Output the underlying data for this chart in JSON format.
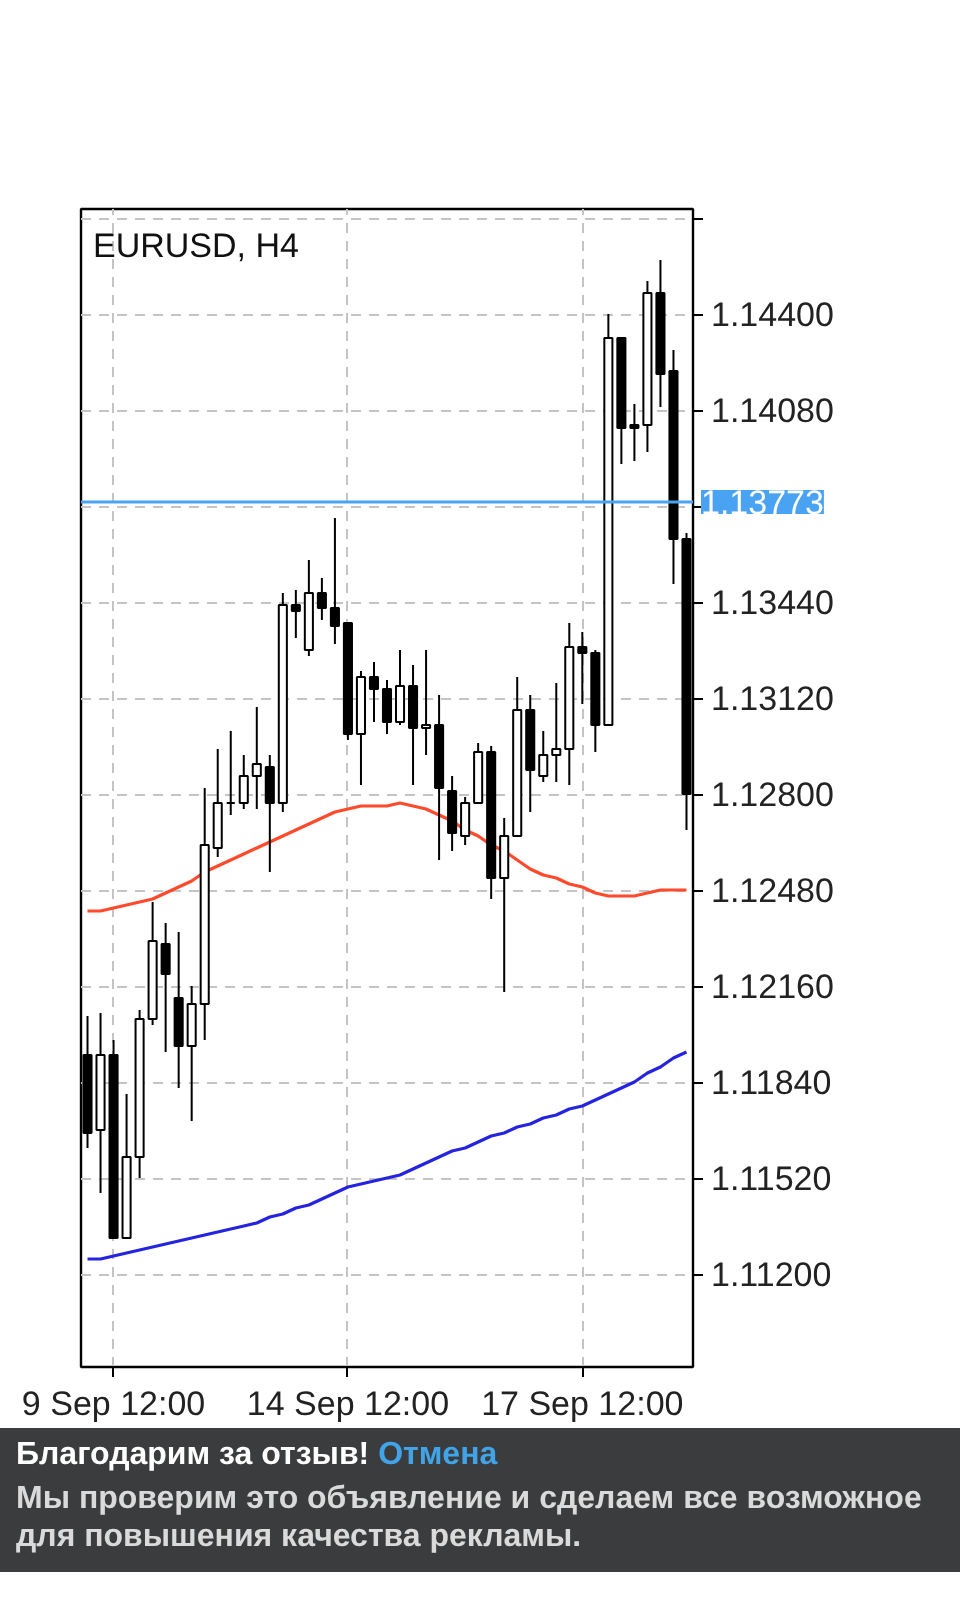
{
  "chart_data": {
    "type": "candlestick",
    "title": "EURUSD, H4",
    "categories": [
      null,
      null,
      "9 Sep 12:00",
      null,
      null,
      null,
      null,
      null,
      null,
      null,
      null,
      null,
      null,
      null,
      null,
      null,
      null,
      null,
      null,
      null,
      "14 Sep 12:00",
      null,
      null,
      null,
      null,
      null,
      null,
      null,
      null,
      null,
      null,
      null,
      null,
      null,
      null,
      null,
      null,
      null,
      "17 Sep 12:00",
      null,
      null,
      null,
      null,
      null,
      null,
      null,
      null
    ],
    "ohlc": [
      [
        1.1193,
        1.1206,
        1.1162,
        1.1167
      ],
      [
        1.1168,
        1.1207,
        1.1147,
        1.1193
      ],
      [
        1.1193,
        1.1198,
        1.1132,
        1.1132
      ],
      [
        1.1132,
        1.118,
        1.1132,
        1.1159
      ],
      [
        1.1159,
        1.1208,
        1.1152,
        1.1205
      ],
      [
        1.1205,
        1.1244,
        1.1203,
        1.1231
      ],
      [
        1.123,
        1.1237,
        1.1194,
        1.122
      ],
      [
        1.1212,
        1.1234,
        1.1182,
        1.1196
      ],
      [
        1.1196,
        1.1216,
        1.1171,
        1.121
      ],
      [
        1.121,
        1.1282,
        1.1198,
        1.1263
      ],
      [
        1.1262,
        1.1295,
        1.1259,
        1.1277
      ],
      [
        1.1277,
        1.1301,
        1.1273,
        1.1277
      ],
      [
        1.1277,
        1.1293,
        1.1275,
        1.1286
      ],
      [
        1.1286,
        1.1309,
        1.1275,
        1.129
      ],
      [
        1.1289,
        1.1293,
        1.1254,
        1.1277
      ],
      [
        1.1277,
        1.1347,
        1.1274,
        1.1343
      ],
      [
        1.1343,
        1.1348,
        1.1332,
        1.1341
      ],
      [
        1.1328,
        1.1358,
        1.1326,
        1.1347
      ],
      [
        1.1347,
        1.1352,
        1.1338,
        1.1342
      ],
      [
        1.1342,
        1.1372,
        1.133,
        1.1336
      ],
      [
        1.1337,
        1.1337,
        1.1298,
        1.13
      ],
      [
        1.13,
        1.1321,
        1.1283,
        1.1319
      ],
      [
        1.1319,
        1.1324,
        1.1304,
        1.1315
      ],
      [
        1.1315,
        1.1318,
        1.13,
        1.1304
      ],
      [
        1.1304,
        1.1328,
        1.1303,
        1.1316
      ],
      [
        1.1316,
        1.1323,
        1.1283,
        1.1302
      ],
      [
        1.1302,
        1.1328,
        1.1293,
        1.1303
      ],
      [
        1.1303,
        1.1313,
        1.1258,
        1.1282
      ],
      [
        1.1281,
        1.1286,
        1.1261,
        1.1267
      ],
      [
        1.1266,
        1.1279,
        1.1263,
        1.1277
      ],
      [
        1.1277,
        1.1297,
        1.1277,
        1.1294
      ],
      [
        1.1294,
        1.1296,
        1.1245,
        1.1252
      ],
      [
        1.1252,
        1.1272,
        1.1214,
        1.1266
      ],
      [
        1.1266,
        1.1319,
        1.1266,
        1.1308
      ],
      [
        1.1308,
        1.1313,
        1.1274,
        1.1288
      ],
      [
        1.1286,
        1.1301,
        1.1284,
        1.1293
      ],
      [
        1.1293,
        1.1317,
        1.1284,
        1.1295
      ],
      [
        1.1295,
        1.1337,
        1.1283,
        1.1329
      ],
      [
        1.1329,
        1.1334,
        1.131,
        1.1327
      ],
      [
        1.1327,
        1.1328,
        1.1294,
        1.1303
      ],
      [
        1.1303,
        1.144,
        1.1303,
        1.1432
      ],
      [
        1.1432,
        1.1432,
        1.139,
        1.1402
      ],
      [
        1.1403,
        1.141,
        1.1391,
        1.1402
      ],
      [
        1.1403,
        1.1451,
        1.1394,
        1.1447
      ],
      [
        1.1447,
        1.1458,
        1.1409,
        1.142
      ],
      [
        1.1421,
        1.1428,
        1.135,
        1.1365
      ],
      [
        1.1365,
        1.1367,
        1.1268,
        1.128
      ]
    ],
    "series": [
      {
        "type": "line",
        "color": "#ff4a2c",
        "values": [
          1.1241,
          1.1241,
          1.1242,
          1.1243,
          1.1244,
          1.1245,
          1.1247,
          1.1249,
          1.1251,
          1.1254,
          1.1256,
          1.1258,
          1.126,
          1.1262,
          1.1264,
          1.1266,
          1.1268,
          1.127,
          1.1272,
          1.1274,
          1.1275,
          1.1276,
          1.1276,
          1.1276,
          1.1277,
          1.1276,
          1.1275,
          1.1273,
          1.1271,
          1.1268,
          1.1266,
          1.1263,
          1.1261,
          1.1258,
          1.1255,
          1.1253,
          1.1252,
          1.125,
          1.1249,
          1.1247,
          1.1246,
          1.1246,
          1.1246,
          1.1247,
          1.1248,
          1.1248,
          1.1248
        ]
      },
      {
        "type": "line",
        "color": "#2424e0",
        "values": [
          1.1125,
          1.1125,
          1.1126,
          1.1127,
          1.1128,
          1.1129,
          1.113,
          1.1131,
          1.1132,
          1.1133,
          1.1134,
          1.1135,
          1.1136,
          1.1137,
          1.1139,
          1.114,
          1.1142,
          1.1143,
          1.1145,
          1.1147,
          1.1149,
          1.115,
          1.1151,
          1.1152,
          1.1153,
          1.1155,
          1.1157,
          1.1159,
          1.1161,
          1.1162,
          1.1164,
          1.1166,
          1.1167,
          1.1169,
          1.117,
          1.1172,
          1.1173,
          1.1175,
          1.1176,
          1.1178,
          1.118,
          1.1182,
          1.1184,
          1.1187,
          1.1189,
          1.1192,
          1.1194
        ]
      }
    ],
    "ylim": [
      1.1089,
      1.1475
    ],
    "yticks": [
      {
        "value": 1.1472,
        "label": null
      },
      {
        "value": 1.144,
        "label": "1.14400"
      },
      {
        "value": 1.1408,
        "label": "1.14080"
      },
      {
        "value": 1.1376,
        "label": null
      },
      {
        "value": 1.1344,
        "label": "1.13440"
      },
      {
        "value": 1.1312,
        "label": "1.13120"
      },
      {
        "value": 1.128,
        "label": "1.12800"
      },
      {
        "value": 1.1248,
        "label": "1.12480"
      },
      {
        "value": 1.1216,
        "label": "1.12160"
      },
      {
        "value": 1.1184,
        "label": "1.11840"
      },
      {
        "value": 1.1152,
        "label": "1.11520"
      },
      {
        "value": 1.112,
        "label": "1.11200"
      }
    ],
    "ref_lines": [
      {
        "axis": "y",
        "value": 1.13773,
        "label": "1.13773",
        "color": "#4aa3f2"
      }
    ],
    "grid": true,
    "annotations": [
      "Благодарим за отзыв!",
      "Отмена",
      "Мы проверим это объявление и сделаем все возможное для повышения качества рекламы."
    ]
  }
}
